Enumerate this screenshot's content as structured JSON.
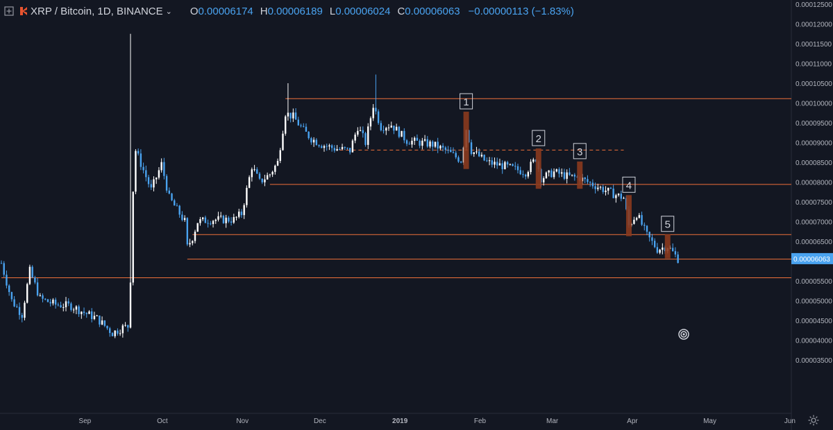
{
  "header": {
    "symbol": "XRP / Bitcoin, 1D, BINANCE",
    "open_label": "O",
    "open": "0.00006174",
    "high_label": "H",
    "high": "0.00006189",
    "low_label": "L",
    "low": "0.00006024",
    "close_label": "C",
    "close": "0.00006063",
    "change": "−0.00000113 (−1.83%)"
  },
  "colors": {
    "background": "#131722",
    "up": "#ffffff",
    "down": "#4aa3f0",
    "hline": "#f0703a",
    "marker": "#8b3a1e"
  },
  "icons": {
    "expand": "expand-icon",
    "logo": "binance-logo-icon",
    "chevron": "chevron-down-icon",
    "target": "target-icon",
    "settings": "gear-icon"
  },
  "chart_data": {
    "type": "candlestick",
    "y_ticks": [
      "0.00012500",
      "0.00012000",
      "0.00011500",
      "0.00011000",
      "0.00010500",
      "0.00010000",
      "0.00009500",
      "0.00009000",
      "0.00008500",
      "0.00008000",
      "0.00007500",
      "0.00007000",
      "0.00006500",
      "0.00006000",
      "0.00005500",
      "0.00005000",
      "0.00004500",
      "0.00004000",
      "0.00003500"
    ],
    "x_labels": [
      "Sep",
      "Oct",
      "Nov",
      "Dec",
      "2019",
      "Feb",
      "Mar",
      "Apr",
      "May",
      "Jun"
    ],
    "last_price_label": "0.00006063",
    "horizontal_lines": [
      {
        "price": 0.0001011,
        "start": "2018-11-19",
        "dashed": false
      },
      {
        "price": 8.81e-05,
        "start": "2018-12-10",
        "end": "2019-03-30",
        "dashed": true
      },
      {
        "price": 7.94e-05,
        "start": "2018-11-13",
        "dashed": false
      },
      {
        "price": 6.67e-05,
        "start": "2018-10-14",
        "dashed": false
      },
      {
        "price": 6.05e-05,
        "start": "2018-10-12",
        "dashed": false
      },
      {
        "price": 5.58e-05,
        "start": "2018-08-01",
        "dashed": false
      }
    ],
    "markers": [
      {
        "label": "1",
        "date": "2019-01-28",
        "top": 9.78e-05,
        "bottom": 8.33e-05
      },
      {
        "label": "2",
        "date": "2019-02-25",
        "top": 8.85e-05,
        "bottom": 7.83e-05
      },
      {
        "label": "3",
        "date": "2019-03-13",
        "top": 8.52e-05,
        "bottom": 7.83e-05
      },
      {
        "label": "4",
        "date": "2019-04-01",
        "top": 7.67e-05,
        "bottom": 6.63e-05
      },
      {
        "label": "5",
        "date": "2019-04-16",
        "top": 6.68e-05,
        "bottom": 6.07e-05
      }
    ],
    "price_path": [
      [
        "2018-08-01",
        5.95e-05
      ],
      [
        "2018-08-05",
        5e-05
      ],
      [
        "2018-08-09",
        4.65e-05
      ],
      [
        "2018-08-12",
        5.75e-05
      ],
      [
        "2018-08-16",
        5.05e-05
      ],
      [
        "2018-08-22",
        4.9e-05
      ],
      [
        "2018-08-28",
        4.87e-05
      ],
      [
        "2018-09-02",
        4.7e-05
      ],
      [
        "2018-09-07",
        4.55e-05
      ],
      [
        "2018-09-13",
        4.18e-05
      ],
      [
        "2018-09-17",
        4.32e-05
      ],
      [
        "2018-09-19",
        4.35e-05
      ],
      [
        "2018-09-20",
        5.55e-05
      ],
      [
        "2018-09-21",
        7.8e-05
      ],
      [
        "2018-09-22",
        8.8e-05
      ],
      [
        "2018-09-25",
        8.3e-05
      ],
      [
        "2018-09-28",
        7.8e-05
      ],
      [
        "2018-10-02",
        8.45e-05
      ],
      [
        "2018-10-05",
        7.6e-05
      ],
      [
        "2018-10-08",
        7.3e-05
      ],
      [
        "2018-10-11",
        7e-05
      ],
      [
        "2018-10-12",
        6.35e-05
      ],
      [
        "2018-10-14",
        6.6e-05
      ],
      [
        "2018-10-16",
        7e-05
      ],
      [
        "2018-10-22",
        7.05e-05
      ],
      [
        "2018-10-30",
        7.05e-05
      ],
      [
        "2018-11-02",
        7.2e-05
      ],
      [
        "2018-11-06",
        8.4e-05
      ],
      [
        "2018-11-09",
        8e-05
      ],
      [
        "2018-11-13",
        8.2e-05
      ],
      [
        "2018-11-16",
        8.5e-05
      ],
      [
        "2018-11-19",
        9.75e-05
      ],
      [
        "2018-11-22",
        9.65e-05
      ],
      [
        "2018-11-26",
        9.3e-05
      ],
      [
        "2018-11-29",
        9.1e-05
      ],
      [
        "2018-12-03",
        8.95e-05
      ],
      [
        "2018-12-08",
        8.85e-05
      ],
      [
        "2018-12-14",
        8.8e-05
      ],
      [
        "2018-12-17",
        9.4e-05
      ],
      [
        "2018-12-20",
        9e-05
      ],
      [
        "2018-12-23",
        9.95e-05
      ],
      [
        "2018-12-26",
        9.4e-05
      ],
      [
        "2018-12-30",
        9.45e-05
      ],
      [
        "2019-01-05",
        9.05e-05
      ],
      [
        "2019-01-10",
        9e-05
      ],
      [
        "2019-01-15",
        8.95e-05
      ],
      [
        "2019-01-20",
        8.8e-05
      ],
      [
        "2019-01-26",
        8.55e-05
      ],
      [
        "2019-01-28",
        9.35e-05
      ],
      [
        "2019-01-30",
        8.8e-05
      ],
      [
        "2019-02-05",
        8.5e-05
      ],
      [
        "2019-02-12",
        8.4e-05
      ],
      [
        "2019-02-20",
        8.25e-05
      ],
      [
        "2019-02-24",
        8.6e-05
      ],
      [
        "2019-02-26",
        8.1e-05
      ],
      [
        "2019-03-03",
        8.25e-05
      ],
      [
        "2019-03-08",
        8.15e-05
      ],
      [
        "2019-03-13",
        8.1e-05
      ],
      [
        "2019-03-16",
        8e-05
      ],
      [
        "2019-03-21",
        7.85e-05
      ],
      [
        "2019-03-26",
        7.7e-05
      ],
      [
        "2019-03-30",
        7.6e-05
      ],
      [
        "2019-04-01",
        6.9e-05
      ],
      [
        "2019-04-04",
        7.2e-05
      ],
      [
        "2019-04-08",
        6.65e-05
      ],
      [
        "2019-04-12",
        6.3e-05
      ],
      [
        "2019-04-16",
        6.38e-05
      ],
      [
        "2019-04-20",
        6.06e-05
      ]
    ],
    "spikes": [
      {
        "date": "2018-09-20",
        "high": 0.0001175
      },
      {
        "date": "2018-11-20",
        "high": 0.000105
      },
      {
        "date": "2018-12-24",
        "high": 0.0001072
      }
    ]
  }
}
